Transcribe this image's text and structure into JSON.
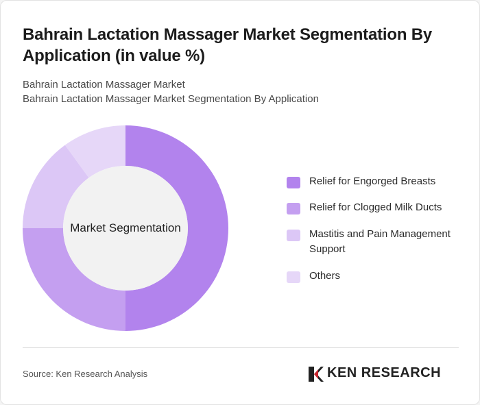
{
  "title": "Bahrain Lactation Massager Market Segmentation By Application (in value %)",
  "subtitle_line1": "Bahrain Lactation Massager Market",
  "subtitle_line2": "Bahrain Lactation Massager Market Segmentation By Application",
  "chart_data": {
    "type": "pie",
    "variant": "donut",
    "center_label": "Market Segmentation",
    "categories": [
      "Relief for Engorged Breasts",
      "Relief for Clogged Milk Ducts",
      "Mastitis and Pain Management Support",
      "Others"
    ],
    "values": [
      50,
      25,
      15,
      10
    ],
    "colors": [
      "#b283ed",
      "#c49ff0",
      "#dcc7f6",
      "#e6d7f8"
    ],
    "legend_position": "right"
  },
  "source": "Source: Ken Research Analysis",
  "logo": {
    "text": "KEN RESEARCH",
    "icon": "ken-research-logo-icon"
  },
  "colors": {
    "center_fill": "#f2f2f2",
    "background": "#ffffff"
  }
}
